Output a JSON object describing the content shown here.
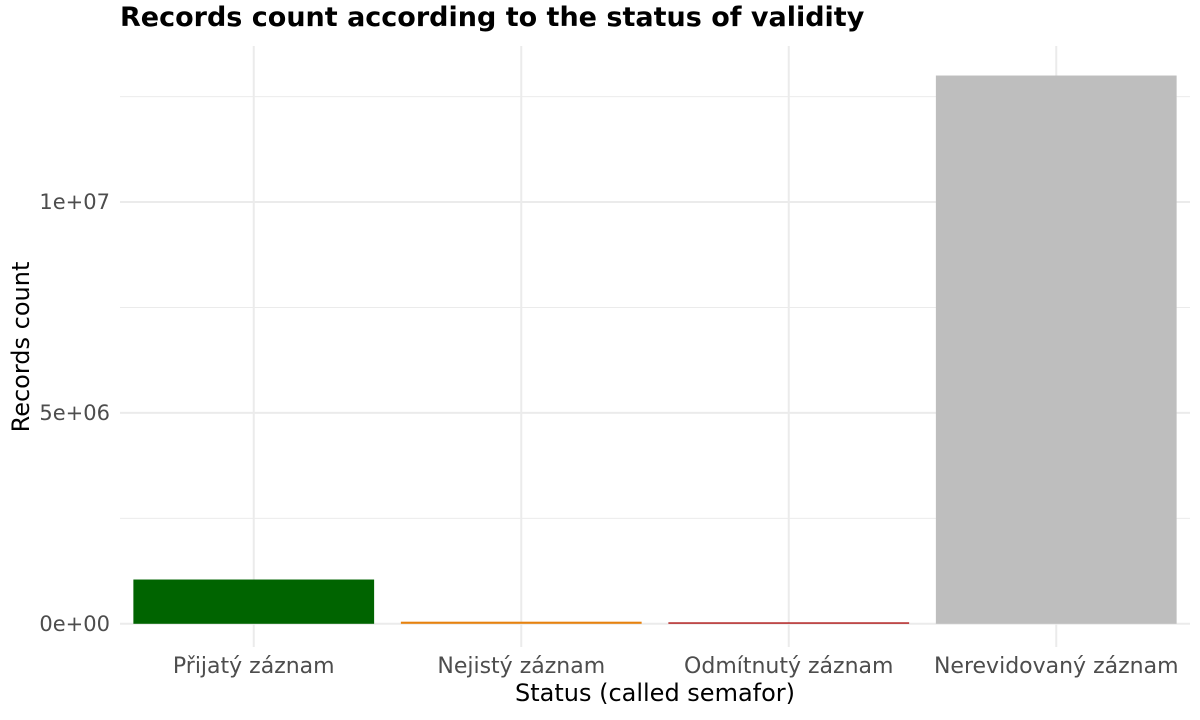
{
  "chart_data": {
    "type": "bar",
    "title": "Records count according to the status of validity",
    "xlabel": "Status (called semafor)",
    "ylabel": "Records count",
    "categories": [
      "Přijatý záznam",
      "Nejistý záznam",
      "Odmítnutý záznam",
      "Nerevidovaný záznam"
    ],
    "values": [
      1050000,
      50000,
      15000,
      13000000
    ],
    "colors": [
      "#006400",
      "#E6820E",
      "#B22222",
      "#BEBEBE"
    ],
    "ylim": [
      -550000,
      13700000
    ],
    "y_ticks": [
      0,
      5000000,
      10000000
    ],
    "y_tick_labels": [
      "0e+00",
      "5e+06",
      "1e+07"
    ],
    "y_minor_ticks": [
      2500000,
      7500000,
      12500000
    ],
    "grid": true,
    "legend": "none"
  }
}
